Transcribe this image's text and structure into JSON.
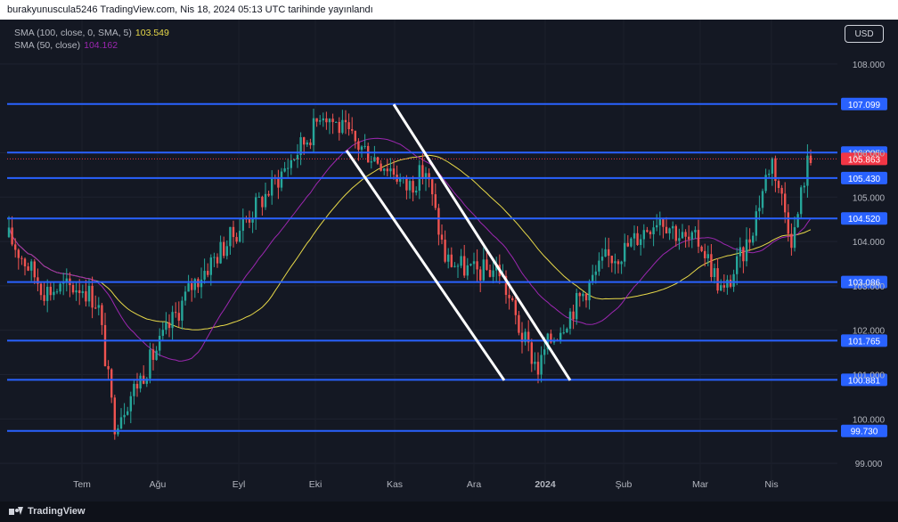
{
  "header": {
    "attribution": "burakyunuscula5246 TradingView.com, Nis 18, 2024 05:13 UTC tarihinde yayınlandı"
  },
  "legend": {
    "sma100_label": "SMA (100, close, 0, SMA, 5)",
    "sma100_value": "103.549",
    "sma50_label": "SMA (50, close)",
    "sma50_value": "104.162"
  },
  "currency_button": "USD",
  "footer": {
    "brand": "TradingView"
  },
  "colors": {
    "background": "#141823",
    "up_candle": "#26a69a",
    "down_candle": "#ef5350",
    "level_line": "#2962ff",
    "sma100": "#e8d949",
    "sma50": "#9c27b0",
    "last_price": "#f23645"
  },
  "chart_data": {
    "type": "candlestick",
    "instrument_shown": "USD",
    "y_axis": {
      "min": 98.6,
      "max": 108.4,
      "ticks": [
        "108.000",
        "106.000",
        "105.000",
        "104.000",
        "103.000",
        "102.000",
        "101.000",
        "100.000",
        "99.000"
      ]
    },
    "x_axis": {
      "labels": [
        "Tem",
        "Ağu",
        "Eyl",
        "Eki",
        "Kas",
        "Ara",
        "2024",
        "Şub",
        "Mar",
        "Nis"
      ]
    },
    "levels": [
      {
        "label": "107.099",
        "value": 107.099
      },
      {
        "label": "106.005",
        "value": 106.005
      },
      {
        "label": "105.430",
        "value": 105.43
      },
      {
        "label": "104.520",
        "value": 104.52
      },
      {
        "label": "103.086",
        "value": 103.086
      },
      {
        "label": "101.765",
        "value": 101.765
      },
      {
        "label": "100.881",
        "value": 100.881
      },
      {
        "label": "99.730",
        "value": 99.73
      }
    ],
    "last_price": {
      "label": "105.863",
      "value": 105.863
    },
    "key_closes": [
      {
        "x": "Tem",
        "value": 103.0
      },
      {
        "x": "Ağu",
        "value": 101.6
      },
      {
        "x": "Eyl",
        "value": 104.3
      },
      {
        "x": "Eki",
        "value": 106.6
      },
      {
        "x": "Kas",
        "value": 105.6
      },
      {
        "x": "Ara",
        "value": 103.3
      },
      {
        "x": "2024",
        "value": 101.6
      },
      {
        "x": "Şub",
        "value": 103.8
      },
      {
        "x": "Mar",
        "value": 104.0
      },
      {
        "x": "Nis",
        "value": 105.9
      }
    ],
    "series": [
      {
        "name": "SMA (100, close, 0, SMA, 5)",
        "last": 103.549
      },
      {
        "name": "SMA (50, close)",
        "last": 104.162
      }
    ],
    "channel_lines": "two parallel white descending trend lines"
  }
}
